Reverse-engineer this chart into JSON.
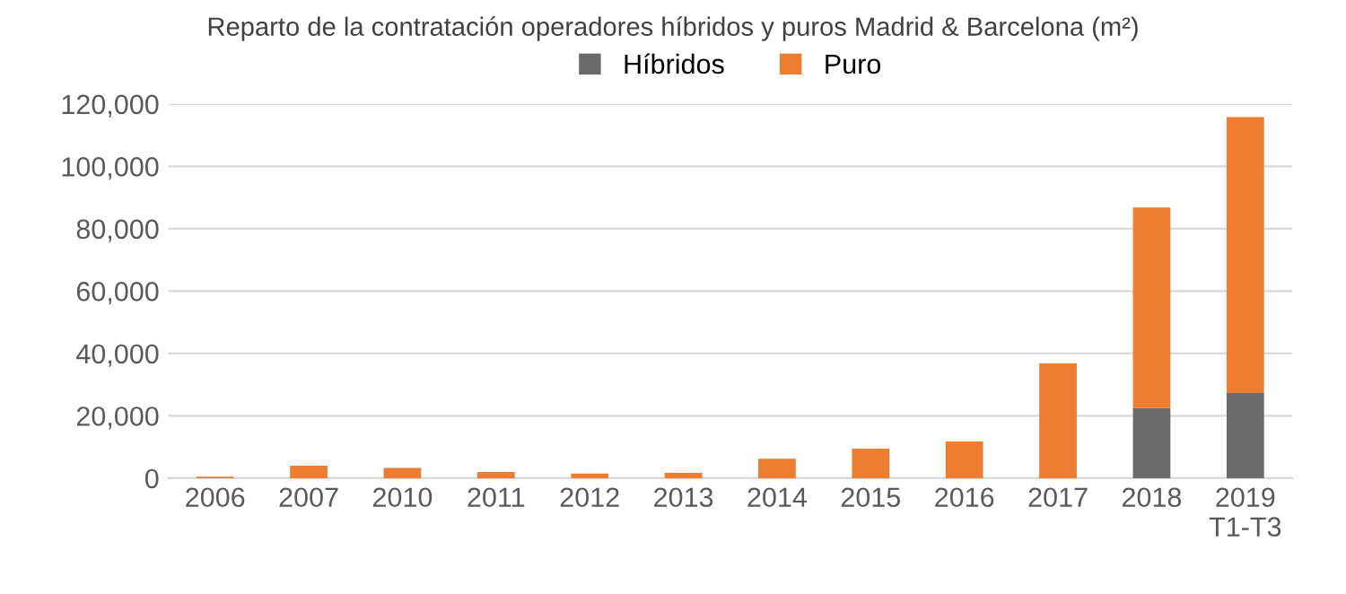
{
  "chart_data": {
    "type": "bar",
    "title": "Reparto de la contratación operadores híbridos y puros Madrid & Barcelona (m²)",
    "categories": [
      "2006",
      "2007",
      "2010",
      "2011",
      "2012",
      "2013",
      "2014",
      "2015",
      "2016",
      "2017",
      "2018",
      "2019\nT1-T3"
    ],
    "stacked": true,
    "series": [
      {
        "name": "Híbridos",
        "color": "#6b6b6b",
        "values": [
          0,
          0,
          0,
          0,
          0,
          0,
          0,
          0,
          0,
          0,
          22500,
          27300
        ]
      },
      {
        "name": "Puro",
        "color": "#ed7d31",
        "values": [
          500,
          4000,
          3300,
          2000,
          1500,
          1700,
          6200,
          9500,
          11800,
          36800,
          64300,
          88500
        ]
      }
    ],
    "ylim": [
      0,
      120000
    ],
    "yticks": [
      {
        "value": 0,
        "label": "0"
      },
      {
        "value": 20000,
        "label": "20,000"
      },
      {
        "value": 40000,
        "label": "40,000"
      },
      {
        "value": 60000,
        "label": "60,000"
      },
      {
        "value": 80000,
        "label": "80,000"
      },
      {
        "value": 100000,
        "label": "100,000"
      },
      {
        "value": 120000,
        "label": "120,000"
      }
    ],
    "grid": "y",
    "legend": "top"
  }
}
